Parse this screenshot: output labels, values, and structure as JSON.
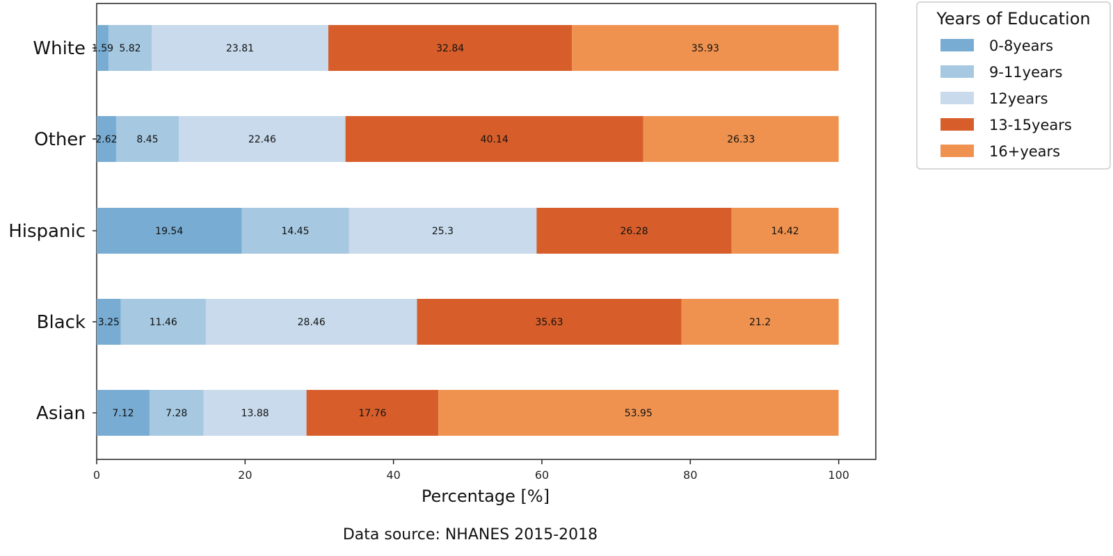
{
  "chart_data": {
    "type": "bar",
    "orientation": "horizontal",
    "stacked": true,
    "categories": [
      "White",
      "Other",
      "Hispanic",
      "Black",
      "Asian"
    ],
    "series": [
      {
        "name": "0-8years",
        "color": "#78acd2",
        "values": [
          1.59,
          2.62,
          19.54,
          3.25,
          7.12
        ]
      },
      {
        "name": "9-11years",
        "color": "#a6c8e1",
        "values": [
          5.82,
          8.45,
          14.45,
          11.46,
          7.28
        ]
      },
      {
        "name": "12years",
        "color": "#c8daeb",
        "values": [
          23.81,
          22.46,
          25.3,
          28.46,
          13.88
        ]
      },
      {
        "name": "13-15years",
        "color": "#d75e2a",
        "values": [
          32.84,
          40.14,
          26.28,
          35.63,
          17.76
        ]
      },
      {
        "name": "16+years",
        "color": "#ef924f",
        "values": [
          35.93,
          26.33,
          14.42,
          21.2,
          53.95
        ]
      }
    ],
    "data_labels": [
      [
        "1.59",
        "2.62",
        "19.54",
        "3.25",
        "7.12"
      ],
      [
        "5.82",
        "8.45",
        "14.45",
        "11.46",
        "7.28"
      ],
      [
        "23.81",
        "22.46",
        "25.3",
        "28.46",
        "13.88"
      ],
      [
        "32.84",
        "40.14",
        "26.28",
        "35.63",
        "17.76"
      ],
      [
        "35.93",
        "26.33",
        "14.42",
        "21.2",
        "53.95"
      ]
    ],
    "xlabel": "Percentage [%]",
    "ylabel": "",
    "xlim": [
      0,
      105
    ],
    "xticks": [
      0,
      20,
      40,
      60,
      80,
      100
    ],
    "xtick_labels": [
      "0",
      "20",
      "40",
      "60",
      "80",
      "100"
    ],
    "grid": false,
    "legend": {
      "title": "Years of Education",
      "placement": "outside-top-right"
    },
    "caption": "Data source: NHANES 2015-2018"
  }
}
